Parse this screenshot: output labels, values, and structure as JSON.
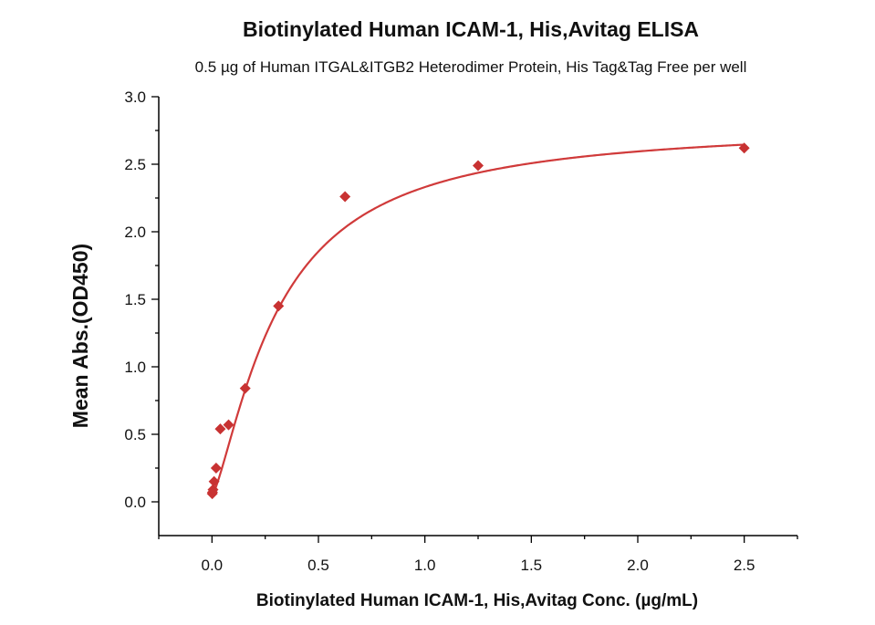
{
  "chart_data": {
    "type": "scatter",
    "title": "Biotinylated Human ICAM-1, His,Avitag ELISA",
    "subtitle": "0.5 µg of Human ITGAL&ITGB2 Heterodimer Protein, His Tag&Tag Free per well",
    "xlabel": "Biotinylated Human ICAM-1, His,Avitag Conc. (µg/mL)",
    "ylabel": "Mean Abs.(OD450)",
    "xlim": [
      -0.25,
      2.75
    ],
    "ylim": [
      -0.25,
      3.0
    ],
    "x_ticks": [
      0.0,
      0.5,
      1.0,
      1.5,
      2.0,
      2.5
    ],
    "x_tick_labels": [
      "0.0",
      "0.5",
      "1.0",
      "1.5",
      "2.0",
      "2.5"
    ],
    "y_ticks": [
      0.0,
      0.5,
      1.0,
      1.5,
      2.0,
      2.5,
      3.0
    ],
    "y_tick_labels": [
      "0.0",
      "0.5",
      "1.0",
      "1.5",
      "2.0",
      "2.5",
      "3.0"
    ],
    "marker_color": "#c83232",
    "curve_color": "#d03a3a",
    "series": [
      {
        "name": "Mean Abs.",
        "marker": "diamond",
        "x": [
          0.0012,
          0.0024,
          0.0049,
          0.0098,
          0.0195,
          0.039,
          0.078,
          0.156,
          0.3125,
          0.625,
          1.25,
          2.5
        ],
        "y": [
          0.06,
          0.07,
          0.09,
          0.15,
          0.25,
          0.54,
          0.57,
          0.84,
          1.45,
          2.26,
          2.49,
          2.62
        ]
      }
    ],
    "fit_curve": {
      "model": "four-parameter logistic",
      "bottom": 0.05,
      "top": 2.8,
      "ec50": 0.31,
      "hill": 1.35
    }
  }
}
